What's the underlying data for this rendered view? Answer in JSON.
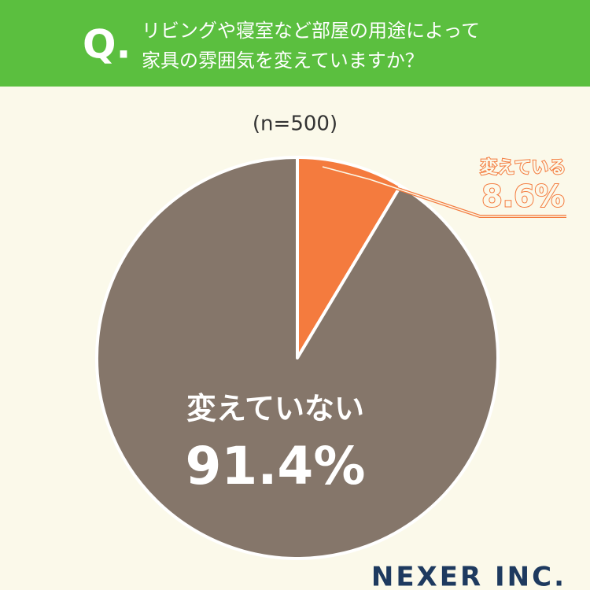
{
  "chart_data": {
    "type": "pie",
    "question_marker": "Q.",
    "title": [
      "リビングや寝室など部屋の用途によって",
      "家具の雰囲気を変えていますか？"
    ],
    "subtitle": "(n=500)",
    "categories": [
      "変えている",
      "変えていない"
    ],
    "values": [
      8.6,
      91.4
    ],
    "value_labels": [
      "8.6%",
      "91.4%"
    ],
    "colors": [
      "#f47b3e",
      "#85766a"
    ],
    "brand": "NEXER INC."
  }
}
